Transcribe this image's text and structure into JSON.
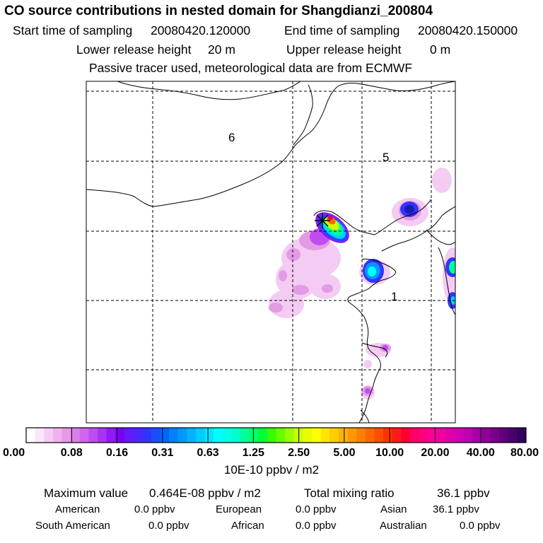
{
  "chart_data": {
    "type": "heatmap",
    "title": "CO  source contributions in nested domain for Shangdianzi_200804",
    "start_label": "Start time of sampling",
    "start_value": "20080420.120000",
    "end_label": "End time of sampling",
    "end_value": "20080420.150000",
    "lower_label": "Lower release height",
    "lower_value": "20 m",
    "upper_label": "Upper release height",
    "upper_value": "0 m",
    "note": "Passive tracer used, meteorological data are from ECMWF",
    "region_labels": [
      "6",
      "5",
      "1"
    ],
    "colorbar": {
      "ticks": [
        "0.00",
        "0.08",
        "0.16",
        "0.31",
        "0.63",
        "1.25",
        "2.50",
        "5.00",
        "10.00",
        "20.00",
        "40.00",
        "80.00"
      ],
      "unit": "10E-10 ppbv / m2",
      "colors": [
        "#ffffff",
        "#fbe6fb",
        "#f5ccf5",
        "#eeb2ee",
        "#e699e6",
        "#db7fe8",
        "#cf66ee",
        "#bf4cf2",
        "#a833f5",
        "#8f1af7",
        "#7a00f5",
        "#6419ff",
        "#4d26ff",
        "#3333ff",
        "#1a4dff",
        "#0066ff",
        "#0080ff",
        "#0099ff",
        "#00b3ff",
        "#00ccff",
        "#00e6ff",
        "#00ffff",
        "#00ffe6",
        "#00ffcc",
        "#00ff99",
        "#00ff66",
        "#00ff33",
        "#33ff00",
        "#66ff00",
        "#99ff00",
        "#ccff00",
        "#e6ff00",
        "#ffff00",
        "#ffe600",
        "#ffcc00",
        "#ffb300",
        "#ff9900",
        "#ff8000",
        "#ff6600",
        "#ff4d00",
        "#ff3300",
        "#ff1a1a",
        "#ff0033",
        "#ff0066",
        "#ff0080",
        "#ff0099",
        "#f000a0",
        "#e000a8",
        "#d000b0",
        "#c000b0",
        "#a800a8",
        "#90009a",
        "#78008a",
        "#60007a",
        "#48006a",
        "#33005a"
      ]
    },
    "maximum_label": "Maximum value",
    "maximum_value": "0.464E-08 ppbv / m2",
    "total_label": "Total mixing ratio",
    "total_value": "36.1 ppbv",
    "contributions": [
      {
        "name": "American",
        "value": "0.0 ppbv"
      },
      {
        "name": "European",
        "value": "0.0 ppbv"
      },
      {
        "name": "Asian",
        "value": "36.1 ppbv"
      },
      {
        "name": "South American",
        "value": "0.0 ppbv"
      },
      {
        "name": "African",
        "value": "0.0 ppbv"
      },
      {
        "name": "Australian",
        "value": "0.0 ppbv"
      }
    ]
  }
}
